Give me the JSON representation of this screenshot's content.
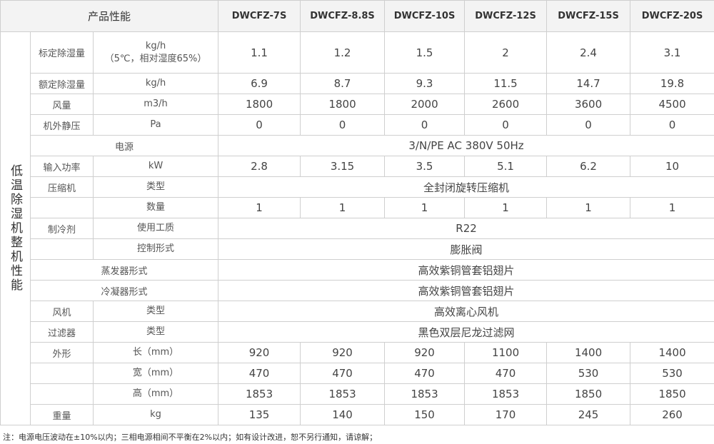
{
  "header": {
    "title": "产品性能",
    "models": [
      "DWCFZ-7S",
      "DWCFZ-8.8S",
      "DWCFZ-10S",
      "DWCFZ-12S",
      "DWCFZ-15S",
      "DWCFZ-20S"
    ]
  },
  "section_label": "低温除湿机整机性能",
  "rows": [
    {
      "item": "标定除湿量",
      "unit": "kg/h",
      "unit2": "（5℃，相对湿度65%）",
      "values": [
        "1.1",
        "1.2",
        "1.5",
        "2",
        "2.4",
        "3.1"
      ]
    },
    {
      "item": "额定除湿量",
      "unit": "kg/h",
      "values": [
        "6.9",
        "8.7",
        "9.3",
        "11.5",
        "14.7",
        "19.8"
      ]
    },
    {
      "item": "风量",
      "unit": "m3/h",
      "values": [
        "1800",
        "1800",
        "2000",
        "2600",
        "3600",
        "4500"
      ]
    },
    {
      "item": "机外静压",
      "unit": "Pa",
      "values": [
        "0",
        "0",
        "0",
        "0",
        "0",
        "0"
      ]
    },
    {
      "label": "电源",
      "merged": "3/N/PE  AC 380V 50Hz"
    },
    {
      "item": "输入功率",
      "unit": "kW",
      "values": [
        "2.8",
        "3.15",
        "3.5",
        "5.1",
        "6.2",
        "10"
      ]
    },
    {
      "item": "压缩机",
      "unit": "类型",
      "merged": "全封闭旋转压缩机"
    },
    {
      "item": "",
      "unit": "数量",
      "values": [
        "1",
        "1",
        "1",
        "1",
        "1",
        "1"
      ]
    },
    {
      "item": "制冷剂",
      "unit": "使用工质",
      "merged": "R22"
    },
    {
      "item": "",
      "unit": "控制形式",
      "merged": "膨胀阀"
    },
    {
      "label": "蒸发器形式",
      "merged": "高效紫铜管套铝翅片"
    },
    {
      "label": "冷凝器形式",
      "merged": "高效紫铜管套铝翅片"
    },
    {
      "item": "风机",
      "unit": "类型",
      "merged": "高效离心风机"
    },
    {
      "item": "过滤器",
      "unit": "类型",
      "merged": "黑色双层尼龙过滤网"
    },
    {
      "item": "外形",
      "unit": "长（mm）",
      "values": [
        "920",
        "920",
        "920",
        "1100",
        "1400",
        "1400"
      ]
    },
    {
      "item": "",
      "unit": "宽（mm）",
      "values": [
        "470",
        "470",
        "470",
        "470",
        "530",
        "530"
      ]
    },
    {
      "item": "",
      "unit": "高（mm）",
      "values": [
        "1853",
        "1853",
        "1853",
        "1853",
        "1850",
        "1850"
      ]
    },
    {
      "item": "重量",
      "unit": "kg",
      "values": [
        "135",
        "140",
        "150",
        "170",
        "245",
        "260"
      ]
    }
  ],
  "note": "注：电源电压波动在±10%以内；三相电源相间不平衡在2%以内；如有设计改进，恕不另行通知，请谅解；"
}
